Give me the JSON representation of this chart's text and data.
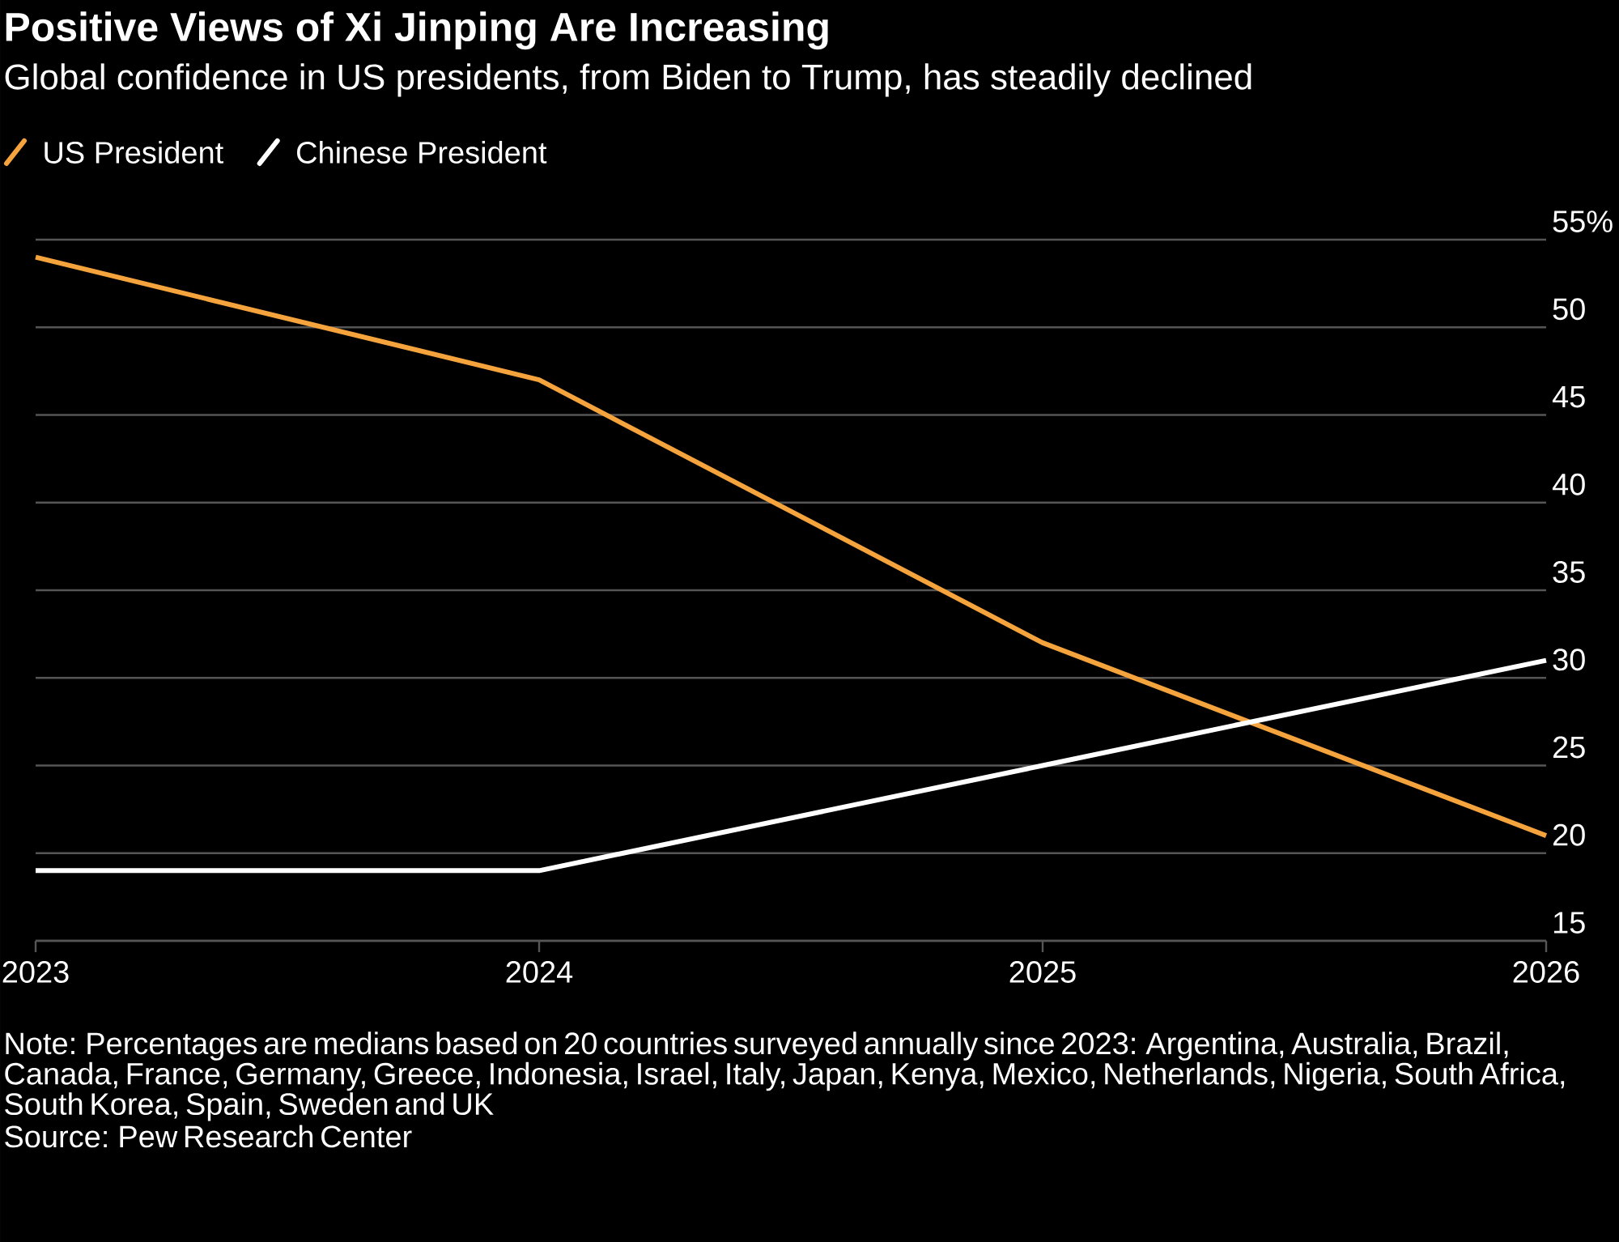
{
  "chart_data": {
    "type": "line",
    "title": "Positive Views of Xi Jinping Are Increasing",
    "subtitle": "Global confidence in US presidents, from Biden to Trump, has steadily declined",
    "x": [
      2023,
      2024,
      2025,
      2026
    ],
    "series": [
      {
        "name": "US President",
        "color": "#f5a33c",
        "values": [
          54,
          47,
          32,
          21
        ]
      },
      {
        "name": "Chinese President",
        "color": "#ffffff",
        "values": [
          19,
          19,
          25,
          31
        ]
      }
    ],
    "xlim": [
      2023,
      2026
    ],
    "xticks": [
      2023,
      2024,
      2025,
      2026
    ],
    "ylim": [
      15,
      55
    ],
    "yticks": [
      15,
      20,
      25,
      30,
      35,
      40,
      45,
      50,
      {
        "value": 55,
        "label": "55%"
      }
    ],
    "grid": "y",
    "legend": "top left",
    "annotations": [
      "Note: Percentages are medians based on 20 countries surveyed annually since 2023: Argentina, Australia, Brazil, Canada, France, Germany, Greece, Indonesia, Israel, Italy, Japan, Kenya, Mexico, Netherlands, Nigeria, South Africa, South Korea, Spain, Sweden and UK",
      "Source: Pew Research Center"
    ]
  }
}
